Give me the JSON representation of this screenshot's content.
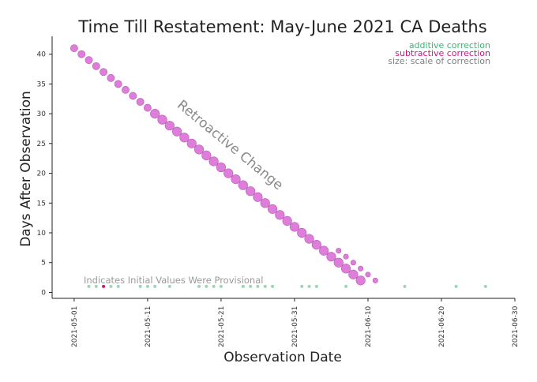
{
  "chart_data": {
    "type": "scatter",
    "title": "Time Till Restatement: May-June 2021 CA Deaths",
    "xlabel": "Observation Date",
    "ylabel": "Days After Observation",
    "x_axis": {
      "type": "date",
      "range": [
        "2021-04-28",
        "2021-06-30"
      ],
      "ticks": [
        "2021-05-01",
        "2021-05-11",
        "2021-05-21",
        "2021-05-31",
        "2021-06-10",
        "2021-06-20",
        "2021-06-30"
      ]
    },
    "y_axis": {
      "range": [
        -1,
        43
      ],
      "ticks": [
        0,
        5,
        10,
        15,
        20,
        25,
        30,
        35,
        40
      ]
    },
    "grid": false,
    "legend": {
      "placement": "top-right",
      "entries": [
        {
          "label": "additive correction",
          "color": "#3cb371"
        },
        {
          "label": "subtractive correction",
          "color": "#c71585"
        },
        {
          "label": "size: scale of correction",
          "color": "#808080"
        }
      ]
    },
    "annotations": [
      {
        "text": "Retroactive Change",
        "color": "#808080"
      },
      {
        "text": "Indicates Initial Values Were Provisional",
        "color": "#9a9a9a"
      }
    ],
    "colors": {
      "restatement": "#da70d6",
      "restatement_edge": "#b45ab4",
      "provisional": "#98d8b2",
      "subtractive_small": "#c71585"
    },
    "series": [
      {
        "kind": "restatement",
        "points": [
          {
            "x": "2021-05-01",
            "y": 41,
            "s": 3
          },
          {
            "x": "2021-05-02",
            "y": 40,
            "s": 3
          },
          {
            "x": "2021-05-03",
            "y": 39,
            "s": 3
          },
          {
            "x": "2021-05-04",
            "y": 38,
            "s": 3
          },
          {
            "x": "2021-05-05",
            "y": 37,
            "s": 3
          },
          {
            "x": "2021-05-06",
            "y": 36,
            "s": 3
          },
          {
            "x": "2021-05-07",
            "y": 35,
            "s": 3
          },
          {
            "x": "2021-05-08",
            "y": 34,
            "s": 3
          },
          {
            "x": "2021-05-09",
            "y": 33,
            "s": 3
          },
          {
            "x": "2021-05-10",
            "y": 32,
            "s": 3
          },
          {
            "x": "2021-05-11",
            "y": 31,
            "s": 3
          },
          {
            "x": "2021-05-12",
            "y": 30,
            "s": 4
          },
          {
            "x": "2021-05-13",
            "y": 29,
            "s": 4
          },
          {
            "x": "2021-05-14",
            "y": 28,
            "s": 4
          },
          {
            "x": "2021-05-15",
            "y": 27,
            "s": 4
          },
          {
            "x": "2021-05-16",
            "y": 26,
            "s": 4
          },
          {
            "x": "2021-05-17",
            "y": 25,
            "s": 4
          },
          {
            "x": "2021-05-18",
            "y": 24,
            "s": 4
          },
          {
            "x": "2021-05-19",
            "y": 23,
            "s": 4
          },
          {
            "x": "2021-05-20",
            "y": 22,
            "s": 4
          },
          {
            "x": "2021-05-21",
            "y": 21,
            "s": 4
          },
          {
            "x": "2021-05-22",
            "y": 20,
            "s": 4
          },
          {
            "x": "2021-05-23",
            "y": 19,
            "s": 4
          },
          {
            "x": "2021-05-24",
            "y": 18,
            "s": 4
          },
          {
            "x": "2021-05-25",
            "y": 17,
            "s": 4
          },
          {
            "x": "2021-05-26",
            "y": 16,
            "s": 4
          },
          {
            "x": "2021-05-27",
            "y": 15,
            "s": 4
          },
          {
            "x": "2021-05-28",
            "y": 14,
            "s": 4
          },
          {
            "x": "2021-05-29",
            "y": 13,
            "s": 4
          },
          {
            "x": "2021-05-30",
            "y": 12,
            "s": 4
          },
          {
            "x": "2021-05-31",
            "y": 11,
            "s": 4
          },
          {
            "x": "2021-06-01",
            "y": 10,
            "s": 4
          },
          {
            "x": "2021-06-02",
            "y": 9,
            "s": 4
          },
          {
            "x": "2021-06-03",
            "y": 8,
            "s": 4
          },
          {
            "x": "2021-06-04",
            "y": 7,
            "s": 4
          },
          {
            "x": "2021-06-05",
            "y": 6,
            "s": 4
          },
          {
            "x": "2021-06-06",
            "y": 5,
            "s": 4
          },
          {
            "x": "2021-06-07",
            "y": 4,
            "s": 4
          },
          {
            "x": "2021-06-08",
            "y": 3,
            "s": 4
          },
          {
            "x": "2021-06-09",
            "y": 2,
            "s": 4
          },
          {
            "x": "2021-06-06",
            "y": 7,
            "s": 1
          },
          {
            "x": "2021-06-07",
            "y": 6,
            "s": 1
          },
          {
            "x": "2021-06-08",
            "y": 5,
            "s": 1
          },
          {
            "x": "2021-06-09",
            "y": 4,
            "s": 1
          },
          {
            "x": "2021-06-10",
            "y": 3,
            "s": 1
          },
          {
            "x": "2021-06-11",
            "y": 2,
            "s": 1
          }
        ]
      },
      {
        "kind": "provisional",
        "points": [
          {
            "x": "2021-05-03",
            "y": 1,
            "c": "add"
          },
          {
            "x": "2021-05-04",
            "y": 1,
            "c": "add"
          },
          {
            "x": "2021-05-05",
            "y": 1,
            "c": "sub"
          },
          {
            "x": "2021-05-06",
            "y": 1,
            "c": "add"
          },
          {
            "x": "2021-05-07",
            "y": 1,
            "c": "add"
          },
          {
            "x": "2021-05-10",
            "y": 1,
            "c": "add"
          },
          {
            "x": "2021-05-11",
            "y": 1,
            "c": "add"
          },
          {
            "x": "2021-05-12",
            "y": 1,
            "c": "add"
          },
          {
            "x": "2021-05-14",
            "y": 1,
            "c": "add"
          },
          {
            "x": "2021-05-18",
            "y": 1,
            "c": "add"
          },
          {
            "x": "2021-05-19",
            "y": 1,
            "c": "add"
          },
          {
            "x": "2021-05-20",
            "y": 1,
            "c": "add"
          },
          {
            "x": "2021-05-21",
            "y": 1,
            "c": "add"
          },
          {
            "x": "2021-05-24",
            "y": 1,
            "c": "add"
          },
          {
            "x": "2021-05-25",
            "y": 1,
            "c": "add"
          },
          {
            "x": "2021-05-26",
            "y": 1,
            "c": "add"
          },
          {
            "x": "2021-05-27",
            "y": 1,
            "c": "add"
          },
          {
            "x": "2021-05-28",
            "y": 1,
            "c": "add"
          },
          {
            "x": "2021-06-01",
            "y": 1,
            "c": "add"
          },
          {
            "x": "2021-06-02",
            "y": 1,
            "c": "add"
          },
          {
            "x": "2021-06-03",
            "y": 1,
            "c": "add"
          },
          {
            "x": "2021-06-07",
            "y": 1,
            "c": "add"
          },
          {
            "x": "2021-06-15",
            "y": 1,
            "c": "add"
          },
          {
            "x": "2021-06-22",
            "y": 1,
            "c": "add"
          },
          {
            "x": "2021-06-26",
            "y": 1,
            "c": "add"
          }
        ]
      }
    ]
  }
}
